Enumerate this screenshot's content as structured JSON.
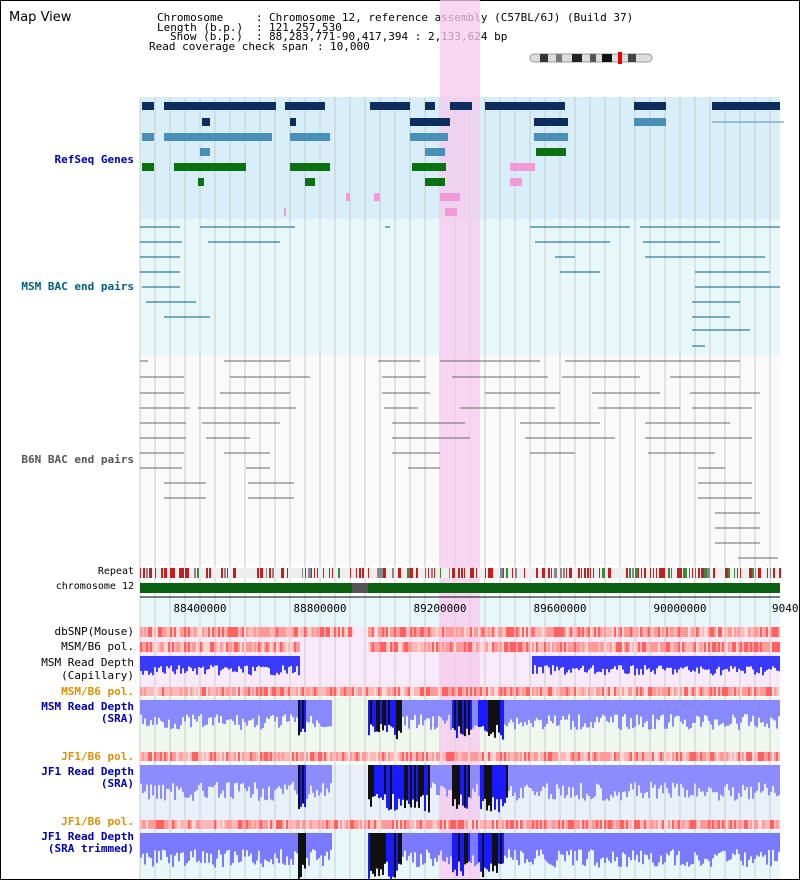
{
  "header": {
    "title": "Map View",
    "chromosome_key": "Chromosome",
    "chromosome_value": "Chromosome 12, reference assembly (C57BL/6J) (Build 37)",
    "length_key": "Length (b.p.)",
    "length_value": "121,257,530",
    "show_key": "Show (b.p.)",
    "show_value": "88,283,771-90,417,394 : 2,133,624 bp",
    "span_key": "Read coverage check span",
    "span_value": "10,000"
  },
  "tracks": {
    "refseq": "RefSeq Genes",
    "msm_bac": "MSM BAC end pairs",
    "b6n_bac": "B6N BAC end pairs",
    "repeat": "Repeat",
    "chromosome": "chromosome 12",
    "dbsnp": "dbSNP(Mouse)",
    "msm_b6_pol_1": "MSM/B6 pol.",
    "msm_read_depth_cap_1": "MSM Read Depth",
    "msm_read_depth_cap_2": "(Capillary)",
    "msm_b6_pol_2": "MSM/B6 pol.",
    "msm_read_depth_sra_1": "MSM Read Depth",
    "msm_read_depth_sra_2": "(SRA)",
    "jf1_b6_pol": "JF1/B6 pol.",
    "jf1_read_depth_1": "JF1 Read Depth",
    "jf1_read_depth_2": "(SRA)",
    "jf1_b6_pol_2": "JF1/B6 pol.",
    "jf1_trim_1": "JF1 Read Depth",
    "jf1_trim_2": "(SRA trimmed)"
  },
  "axis": {
    "ticks": [
      "88400000",
      "88800000",
      "89200000",
      "89600000",
      "90000000",
      "9040"
    ]
  },
  "colors": {
    "highlight": "#f7c8ee",
    "refseq_bg": "#d8eef8",
    "msm_bg": "#e8f8fa",
    "dark_gene": "#0c2d5e",
    "mid_gene": "#4a8fb8",
    "green_gene": "#0a7010",
    "pink_gene": "#f09ad8",
    "msm_label": "#006080",
    "label_blue": "#0000aa",
    "label_orange": "#e09000"
  }
}
